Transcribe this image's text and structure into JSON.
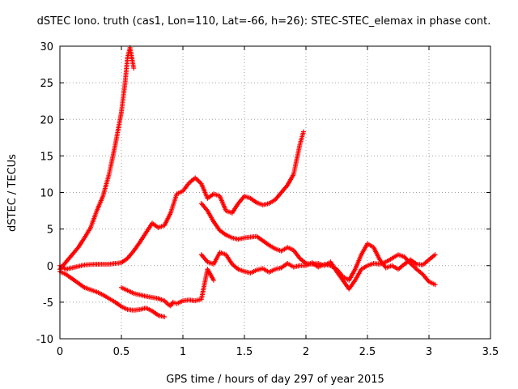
{
  "chart_data": {
    "type": "scatter",
    "title": "dSTEC Iono. truth (cas1, Lon=110, Lat=-66, h=26): STEC-STEC_elemax in phase cont.",
    "xlabel": "GPS time / hours of day 297 of year 2015",
    "ylabel": "dSTEC  / TECUs",
    "xlim": [
      0,
      3.5
    ],
    "ylim": [
      -10,
      30
    ],
    "x_ticks": [
      "0",
      "0.5",
      "1",
      "1.5",
      "2",
      "2.5",
      "3",
      "3.5"
    ],
    "y_ticks": [
      "-10",
      "-5",
      "0",
      "5",
      "10",
      "15",
      "20",
      "25",
      "30"
    ],
    "grid": true,
    "marker": "plus",
    "color": "#ff0000",
    "series": [
      {
        "x": [
          0.0,
          0.05,
          0.1,
          0.15,
          0.2,
          0.25,
          0.3,
          0.35,
          0.4,
          0.45,
          0.5,
          0.53,
          0.55,
          0.57,
          0.6
        ],
        "y": [
          -0.5,
          0.5,
          1.5,
          2.5,
          3.8,
          5.2,
          7.5,
          9.5,
          12.5,
          16.5,
          21,
          25,
          28.5,
          29.8,
          27
        ]
      },
      {
        "x": [
          0.0,
          0.05,
          0.1,
          0.2,
          0.3,
          0.4,
          0.5,
          0.55,
          0.6,
          0.65,
          0.7,
          0.75,
          0.8,
          0.85,
          0.9,
          0.95,
          1.0,
          1.05,
          1.1,
          1.15,
          1.2,
          1.25,
          1.3,
          1.35,
          1.4,
          1.45,
          1.5,
          1.55,
          1.6,
          1.65,
          1.7,
          1.75,
          1.8,
          1.85,
          1.9,
          1.95,
          1.98
        ],
        "y": [
          0.0,
          -0.5,
          -0.3,
          0.1,
          0.2,
          0.2,
          0.4,
          1.0,
          2.0,
          3.2,
          4.5,
          5.8,
          5.2,
          5.5,
          7.2,
          9.8,
          10.2,
          11.3,
          12.0,
          11.2,
          9.2,
          9.8,
          9.5,
          7.5,
          7.2,
          8.5,
          9.5,
          9.2,
          8.6,
          8.3,
          8.5,
          9.0,
          10.0,
          11.0,
          12.5,
          16.5,
          18.3
        ]
      },
      {
        "x": [
          0.0,
          0.05,
          0.1,
          0.15,
          0.2,
          0.25,
          0.3,
          0.35,
          0.4,
          0.45,
          0.5,
          0.55,
          0.6,
          0.65,
          0.7,
          0.75,
          0.8,
          0.85
        ],
        "y": [
          -0.8,
          -1.2,
          -1.8,
          -2.4,
          -3.0,
          -3.3,
          -3.6,
          -4.0,
          -4.5,
          -5.0,
          -5.6,
          -6.0,
          -6.1,
          -6.0,
          -5.8,
          -6.2,
          -6.8,
          -7.0
        ]
      },
      {
        "x": [
          0.5,
          0.6,
          0.7,
          0.8,
          0.85,
          0.88,
          0.9,
          0.92,
          0.95,
          1.0,
          1.05,
          1.1,
          1.15,
          1.2,
          1.25
        ],
        "y": [
          -3.0,
          -3.8,
          -4.2,
          -4.5,
          -4.8,
          -5.3,
          -5.5,
          -5.0,
          -5.2,
          -4.8,
          -4.7,
          -4.8,
          -4.6,
          -0.5,
          -2.0
        ]
      },
      {
        "x": [
          1.15,
          1.2,
          1.25,
          1.3,
          1.35,
          1.4,
          1.45,
          1.5,
          1.55,
          1.6,
          1.65,
          1.7,
          1.75,
          1.8,
          1.85,
          1.9,
          1.95,
          2.0,
          2.05,
          2.1,
          2.15,
          2.2,
          2.25,
          2.3,
          2.35,
          2.4,
          2.45,
          2.5,
          2.55,
          2.6,
          2.65,
          2.7,
          2.75,
          2.8,
          2.85,
          2.9,
          2.95,
          3.0,
          3.05
        ],
        "y": [
          8.5,
          7.5,
          6.0,
          4.8,
          4.2,
          3.8,
          3.6,
          3.8,
          3.9,
          4.0,
          3.4,
          2.8,
          2.3,
          2.0,
          2.5,
          2.1,
          1.0,
          0.3,
          0.2,
          0.3,
          0.0,
          0.5,
          -0.8,
          -2.0,
          -3.2,
          -2.0,
          -0.5,
          0.0,
          0.3,
          0.2,
          0.5,
          1.0,
          1.5,
          1.2,
          0.3,
          -0.5,
          -1.2,
          -2.2,
          -2.6
        ]
      },
      {
        "x": [
          1.15,
          1.2,
          1.25,
          1.3,
          1.35,
          1.4,
          1.45,
          1.5,
          1.55,
          1.6,
          1.65,
          1.7,
          1.75,
          1.8,
          1.85,
          1.9,
          1.95,
          2.0,
          2.05,
          2.1,
          2.15,
          2.2,
          2.25,
          2.3,
          2.35,
          2.4,
          2.45,
          2.5,
          2.55,
          2.6,
          2.65,
          2.7,
          2.75,
          2.8,
          2.85,
          2.9,
          2.95,
          3.0,
          3.05
        ],
        "y": [
          1.5,
          0.5,
          0.2,
          1.8,
          1.5,
          0.2,
          -0.5,
          -0.8,
          -1.0,
          -0.6,
          -0.4,
          -0.9,
          -0.5,
          -0.3,
          0.3,
          -0.2,
          0.0,
          0.0,
          0.4,
          -0.2,
          0.2,
          0.0,
          -0.5,
          -1.5,
          -2.0,
          -0.5,
          1.5,
          3.0,
          2.5,
          0.8,
          -0.3,
          0.0,
          -0.5,
          0.2,
          0.8,
          0.2,
          0.1,
          0.8,
          1.5
        ]
      }
    ]
  }
}
